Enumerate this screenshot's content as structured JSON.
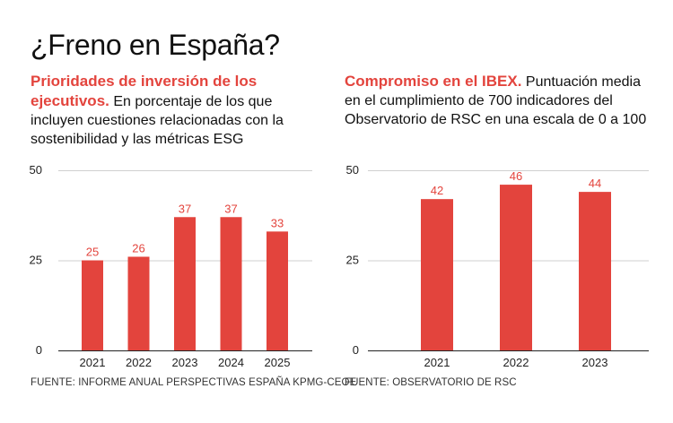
{
  "title": "¿Freno en España?",
  "colors": {
    "accent": "#e3443d",
    "text": "#111111",
    "grid": "#cfcfcf"
  },
  "left": {
    "lead": "Prioridades de inversión de los ejecutivos.",
    "desc": "En porcentaje de los que incluyen cuestiones relacionadas con la sostenibilidad y las métricas ESG",
    "source": "FUENTE: INFORME ANUAL PERSPECTIVAS ESPAÑA KPMG-CEOE"
  },
  "right": {
    "lead": "Compromiso en el IBEX.",
    "desc": "Puntuación media en el cumplimiento de 700 indicadores del Observatorio de RSC en una escala de 0 a 100",
    "source": "FUENTE: OBSERVATORIO DE RSC"
  },
  "chart_data": [
    {
      "type": "bar",
      "title": "Prioridades de inversión de los ejecutivos.",
      "categories": [
        "2021",
        "2022",
        "2023",
        "2024",
        "2025"
      ],
      "values": [
        25,
        26,
        37,
        37,
        33
      ],
      "yticks": [
        0,
        25,
        50
      ],
      "ylim": [
        0,
        50
      ],
      "xlabel": "",
      "ylabel": ""
    },
    {
      "type": "bar",
      "title": "Compromiso en el IBEX.",
      "categories": [
        "2021",
        "2022",
        "2023"
      ],
      "values": [
        42,
        46,
        44
      ],
      "yticks": [
        0,
        25,
        50
      ],
      "ylim": [
        0,
        50
      ],
      "xlabel": "",
      "ylabel": ""
    }
  ]
}
